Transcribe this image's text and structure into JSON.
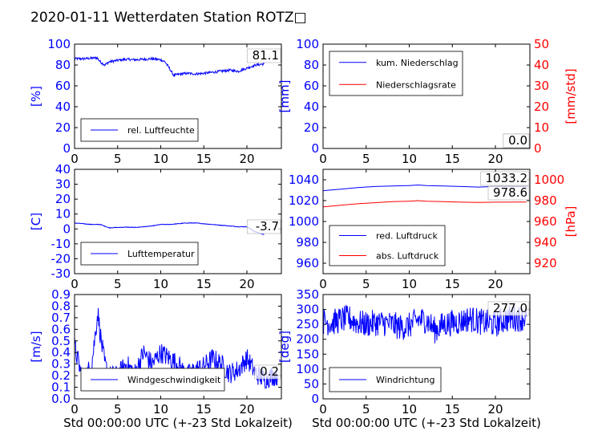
{
  "title": "2020-01-11 Wetterdaten Station ROTZ",
  "title_glyph": "□",
  "chart_data": [
    {
      "id": "humidity",
      "type": "line",
      "xlabel": "",
      "ylabel": "[%]",
      "xlim": [
        0,
        24
      ],
      "ylim": [
        0,
        100
      ],
      "xticks": [
        0,
        5,
        10,
        15,
        20
      ],
      "yticks": [
        0,
        20,
        40,
        60,
        80,
        100
      ],
      "last_value": "81.1",
      "legend": "bottom-left",
      "series": [
        {
          "name": "rel. Luftfeuchte",
          "color": "#0000ff",
          "axis": "left",
          "x": [
            0,
            1,
            2,
            2.6,
            3,
            3.5,
            4,
            5,
            6,
            7,
            8,
            9,
            10,
            10.5,
            11,
            11.5,
            12,
            13,
            14,
            15,
            16,
            17,
            18,
            19,
            20,
            21,
            22
          ],
          "y": [
            86,
            86,
            86.5,
            87,
            83,
            80,
            83,
            84.5,
            85.5,
            85,
            85.5,
            86,
            85,
            83,
            77,
            70,
            71,
            72,
            71.5,
            72,
            73,
            74,
            75,
            74,
            77,
            80,
            81.1
          ],
          "noise": 1.2
        }
      ]
    },
    {
      "id": "precipitation",
      "type": "line",
      "xlabel": "",
      "ylabel": "[mm]",
      "ylabel_right": "[mm/std]",
      "xlim": [
        0,
        24
      ],
      "ylim": [
        0,
        100
      ],
      "ylim_right": [
        0,
        50
      ],
      "xticks": [
        0,
        5,
        10,
        15,
        20
      ],
      "yticks": [
        0,
        20,
        40,
        60,
        80,
        100
      ],
      "yticks_right": [
        0,
        10,
        20,
        30,
        40,
        50
      ],
      "last_values": [
        "0.0",
        "0.0"
      ],
      "legend": "top-left",
      "series": [
        {
          "name": "kum. Niederschlag",
          "color": "#0000ff",
          "axis": "left",
          "x": [
            0,
            23.6
          ],
          "y": [
            0,
            0
          ]
        },
        {
          "name": "Niederschlagsrate",
          "color": "#ff0000",
          "axis": "right",
          "x": [
            0,
            23.6
          ],
          "y": [
            0,
            0
          ]
        }
      ]
    },
    {
      "id": "temperature",
      "type": "line",
      "xlabel": "",
      "ylabel": "[C]",
      "xlim": [
        0,
        24
      ],
      "ylim": [
        -30,
        40
      ],
      "xticks": [
        0,
        5,
        10,
        15,
        20
      ],
      "yticks": [
        -30,
        -20,
        -10,
        0,
        10,
        20,
        30,
        40
      ],
      "last_value": "-3.7",
      "legend": "bottom-left",
      "series": [
        {
          "name": "Lufttemperatur",
          "color": "#0000ff",
          "axis": "left",
          "x": [
            0,
            1,
            2,
            3,
            4,
            5,
            6,
            7,
            8,
            9,
            10,
            11,
            12,
            13,
            14,
            15,
            16,
            17,
            18,
            19,
            20,
            21,
            22
          ],
          "y": [
            4,
            3.5,
            3,
            3,
            0.8,
            1,
            1.2,
            1,
            1.5,
            2,
            3,
            3,
            3.5,
            4,
            4,
            3.5,
            3,
            2.5,
            2,
            1.5,
            1.5,
            -2,
            -3.7
          ],
          "noise": 0.2
        }
      ]
    },
    {
      "id": "pressure",
      "type": "line",
      "xlabel": "",
      "ylabel": "",
      "ylabel_right": "[hPa]",
      "xlim": [
        0,
        24
      ],
      "ylim": [
        950,
        1050
      ],
      "ylim_right": [
        910,
        1010
      ],
      "xticks": [
        0,
        5,
        10,
        15,
        20
      ],
      "yticks": [
        960,
        980,
        1000,
        1020,
        1040
      ],
      "yticks_right": [
        920,
        940,
        960,
        980,
        1000
      ],
      "last_values": [
        "1033.2",
        "978.6"
      ],
      "legend": "bottom-left",
      "series": [
        {
          "name": "red. Luftdruck",
          "color": "#0000ff",
          "axis": "left",
          "x": [
            0,
            2,
            4,
            6,
            8,
            10,
            11,
            12,
            14,
            16,
            18,
            20,
            22,
            23.6
          ],
          "y": [
            1029.5,
            1031,
            1032.5,
            1033.5,
            1034,
            1034.5,
            1035,
            1034.5,
            1034,
            1033.5,
            1033,
            1033.5,
            1033.5,
            1033.2
          ]
        },
        {
          "name": "abs. Luftdruck",
          "color": "#ff0000",
          "axis": "right",
          "x": [
            0,
            2,
            4,
            6,
            8,
            10,
            11,
            12,
            14,
            16,
            18,
            20,
            22,
            23.6
          ],
          "y": [
            974,
            975.5,
            977,
            978,
            979,
            979.5,
            980,
            979.5,
            979,
            978.5,
            978.3,
            978.5,
            978.6,
            978.6
          ]
        }
      ]
    },
    {
      "id": "windspeed",
      "type": "line",
      "xlabel": "Std 00:00:00 UTC (+-23 Std Lokalzeit)",
      "ylabel": "[m/s]",
      "xlim": [
        0,
        24
      ],
      "ylim": [
        0,
        0.9
      ],
      "xticks": [
        0,
        5,
        10,
        15,
        20
      ],
      "yticks": [
        0,
        0.1,
        0.2,
        0.3,
        0.4,
        0.5,
        0.6,
        0.7,
        0.8,
        0.9
      ],
      "last_value": "0.2",
      "legend": "bottom-left",
      "series": [
        {
          "name": "Windgeschwindigkeit",
          "color": "#0000ff",
          "axis": "left",
          "x": [
            0,
            0.5,
            1,
            2,
            2.7,
            3,
            3.5,
            4,
            5,
            6,
            7,
            8,
            9,
            10,
            11,
            12,
            13,
            14,
            15,
            16,
            17,
            18,
            19,
            20,
            21,
            22,
            23,
            23.6
          ],
          "y": [
            0.45,
            0.3,
            0.15,
            0.3,
            0.75,
            0.55,
            0.3,
            0.2,
            0.2,
            0.3,
            0.22,
            0.4,
            0.3,
            0.4,
            0.35,
            0.3,
            0.2,
            0.25,
            0.28,
            0.35,
            0.3,
            0.22,
            0.25,
            0.35,
            0.22,
            0.17,
            0.2,
            0.2
          ],
          "noise": 0.09
        }
      ]
    },
    {
      "id": "winddirection",
      "type": "line",
      "xlabel": "Std 00:00:00 UTC (+-23 Std Lokalzeit)",
      "ylabel": "[deg]",
      "xlim": [
        0,
        24
      ],
      "ylim": [
        0,
        350
      ],
      "xticks": [
        0,
        5,
        10,
        15,
        20
      ],
      "yticks": [
        0,
        50,
        100,
        150,
        200,
        250,
        300,
        350
      ],
      "last_value": "277.0",
      "legend": "bottom-left",
      "series": [
        {
          "name": "Windrichtung",
          "color": "#0000ff",
          "axis": "left",
          "x": [
            0,
            1,
            2,
            3,
            4,
            5,
            6,
            7,
            8,
            9,
            10,
            11,
            12,
            13,
            14,
            15,
            16,
            17,
            18,
            19,
            20,
            21,
            22,
            23,
            23.6
          ],
          "y": [
            260,
            255,
            265,
            270,
            255,
            250,
            255,
            255,
            250,
            240,
            245,
            265,
            265,
            230,
            250,
            255,
            260,
            270,
            260,
            255,
            250,
            265,
            270,
            270,
            277
          ],
          "noise": 45
        }
      ]
    }
  ]
}
